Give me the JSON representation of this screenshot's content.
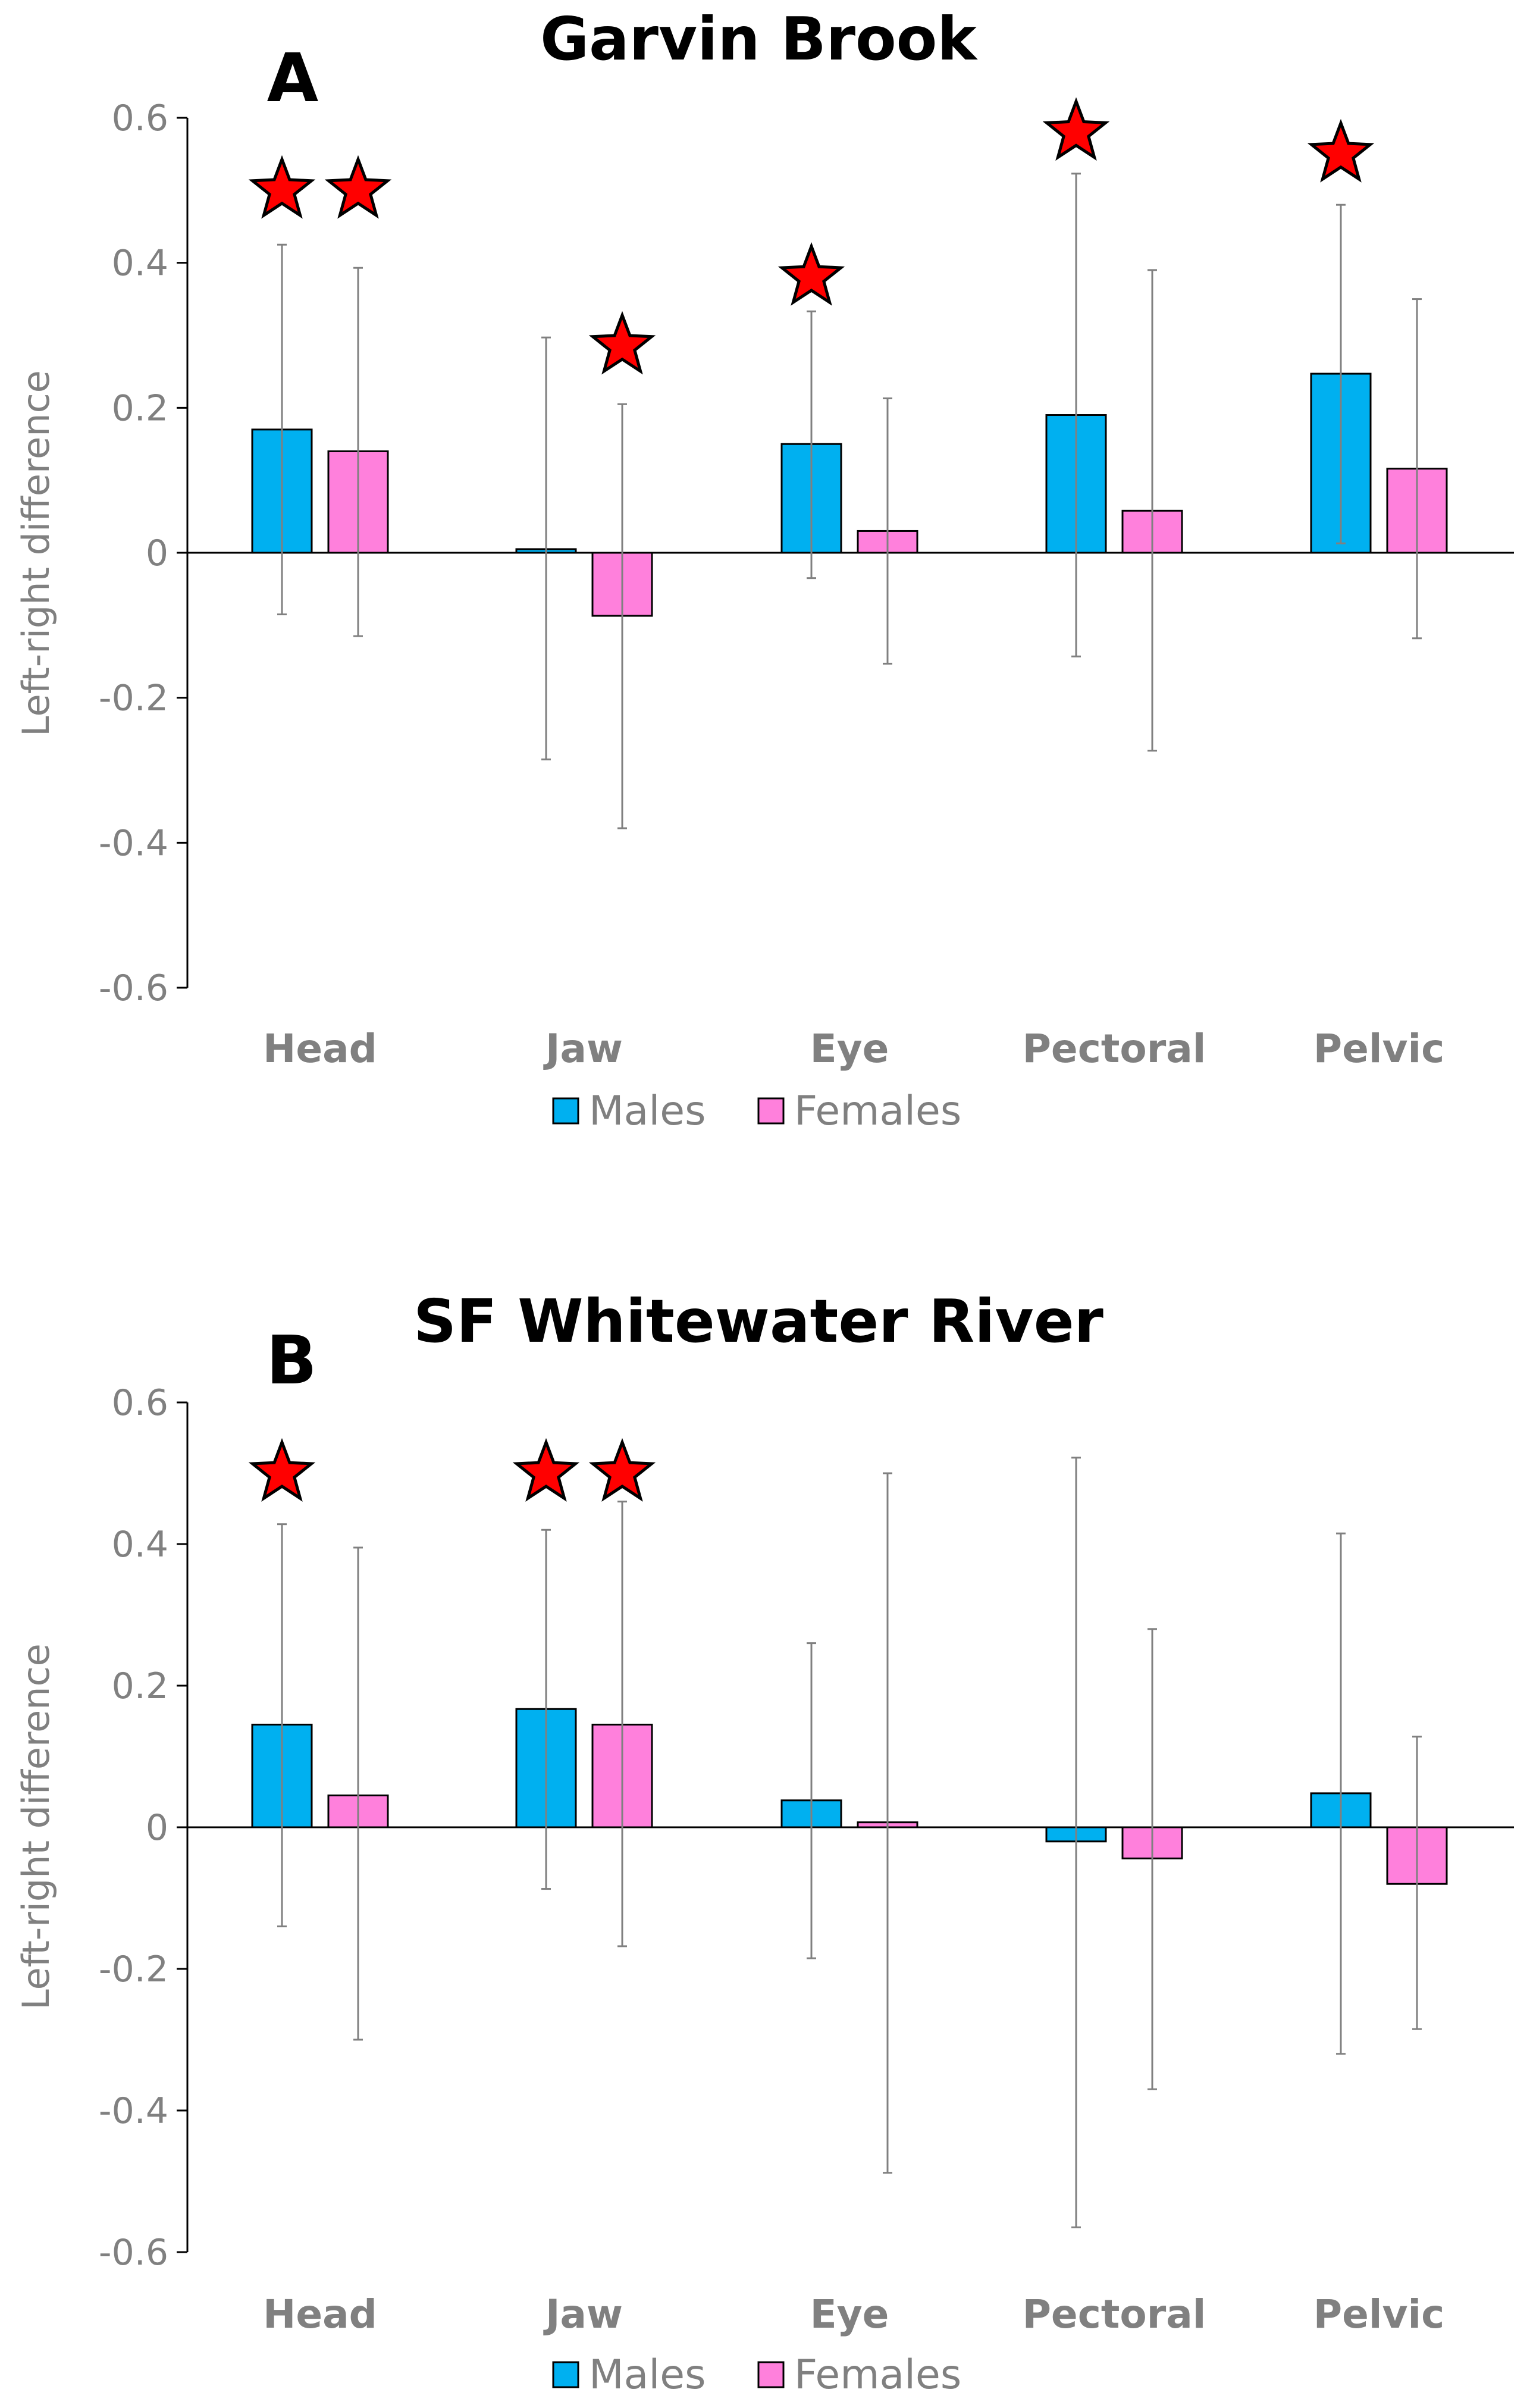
{
  "colors": {
    "males": "#00B0F0",
    "females": "#FF80DC",
    "star": "#FF0000",
    "axis": "#000000",
    "error_bar": "#808080"
  },
  "chart_data": [
    {
      "type": "bar",
      "panel": "A",
      "title": "Garvin Brook",
      "ylabel": "Left-right difference",
      "ylim": [
        -0.6,
        0.6
      ],
      "yticks": [
        "0.6",
        "0.4",
        "0.2",
        "0",
        "-0.2",
        "-0.4",
        "-0.6"
      ],
      "categories": [
        "Head",
        "Jaw",
        "Eye",
        "Pectoral",
        "Pelvic"
      ],
      "legend": {
        "position": "bottom",
        "entries": [
          "Males",
          "Females"
        ]
      },
      "series": [
        {
          "name": "Males",
          "values": [
            0.17,
            0.005,
            0.15,
            0.19,
            0.247
          ],
          "err_low": [
            -0.085,
            -0.285,
            -0.035,
            -0.143,
            0.013
          ],
          "err_high": [
            0.425,
            0.297,
            0.333,
            0.523,
            0.48
          ],
          "stars": [
            true,
            false,
            true,
            true,
            true
          ],
          "star_y": [
            0.5,
            null,
            0.38,
            0.58,
            0.55
          ]
        },
        {
          "name": "Females",
          "values": [
            0.14,
            -0.087,
            0.03,
            0.058,
            0.116
          ],
          "err_low": [
            -0.115,
            -0.38,
            -0.153,
            -0.273,
            -0.118
          ],
          "err_high": [
            0.393,
            0.205,
            0.213,
            0.39,
            0.35
          ],
          "stars": [
            true,
            true,
            false,
            false,
            false
          ],
          "star_y": [
            0.5,
            0.285,
            null,
            null,
            null
          ]
        }
      ]
    },
    {
      "type": "bar",
      "panel": "B",
      "title": "SF Whitewater River",
      "ylabel": "Left-right difference",
      "ylim": [
        -0.6,
        0.6
      ],
      "yticks": [
        "0.6",
        "0.4",
        "0.2",
        "0",
        "-0.2",
        "-0.4",
        "-0.6"
      ],
      "categories": [
        "Head",
        "Jaw",
        "Eye",
        "Pectoral",
        "Pelvic"
      ],
      "legend": {
        "position": "bottom",
        "entries": [
          "Males",
          "Females"
        ]
      },
      "series": [
        {
          "name": "Males",
          "values": [
            0.145,
            0.167,
            0.038,
            -0.02,
            0.048
          ],
          "err_low": [
            -0.14,
            -0.087,
            -0.185,
            -0.565,
            -0.32
          ],
          "err_high": [
            0.428,
            0.42,
            0.26,
            0.522,
            0.415
          ],
          "stars": [
            true,
            true,
            false,
            false,
            false
          ],
          "star_y": [
            0.5,
            0.5,
            null,
            null,
            null
          ]
        },
        {
          "name": "Females",
          "values": [
            0.045,
            0.145,
            0.007,
            -0.044,
            -0.08
          ],
          "err_low": [
            -0.3,
            -0.168,
            -0.488,
            -0.37,
            -0.285
          ],
          "err_high": [
            0.395,
            0.46,
            0.5,
            0.28,
            0.128
          ],
          "stars": [
            false,
            true,
            false,
            false,
            false
          ],
          "star_y": [
            null,
            0.5,
            null,
            null,
            null
          ]
        }
      ]
    }
  ]
}
